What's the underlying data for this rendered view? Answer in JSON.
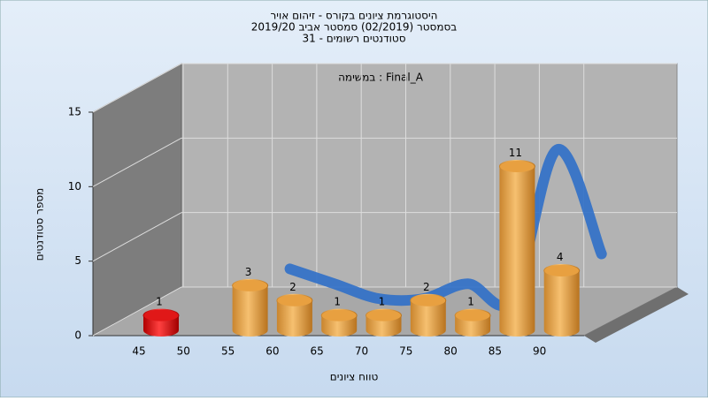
{
  "chart_data": {
    "type": "bar3d",
    "title": "היסטוגרמת ציונים בקורס - זיהום אויר",
    "subtitle": "בסמסטר  (02/2019)  סמסטר אביב 2019/20",
    "subtitle2": "סטודנטים רשומים - 31",
    "annotation": "במשימה : Final_A",
    "y_label": "מספר סטודנטים",
    "x_label": "טווח ציונים",
    "categories": [
      "45",
      "50",
      "55",
      "60",
      "65",
      "70",
      "75",
      "80",
      "85",
      "90"
    ],
    "values": [
      1,
      null,
      3,
      2,
      1,
      1,
      2,
      1,
      11,
      4
    ],
    "colors": [
      "#e01818",
      null,
      "#e8a040",
      "#e8a040",
      "#e8a040",
      "#e8a040",
      "#e8a040",
      "#e8a040",
      "#e8a040",
      "#e8a040"
    ],
    "trend_color": "#2f6fc8",
    "ylim": [
      0,
      15
    ],
    "yticks": [
      0,
      5,
      10,
      15
    ],
    "grid": true
  }
}
